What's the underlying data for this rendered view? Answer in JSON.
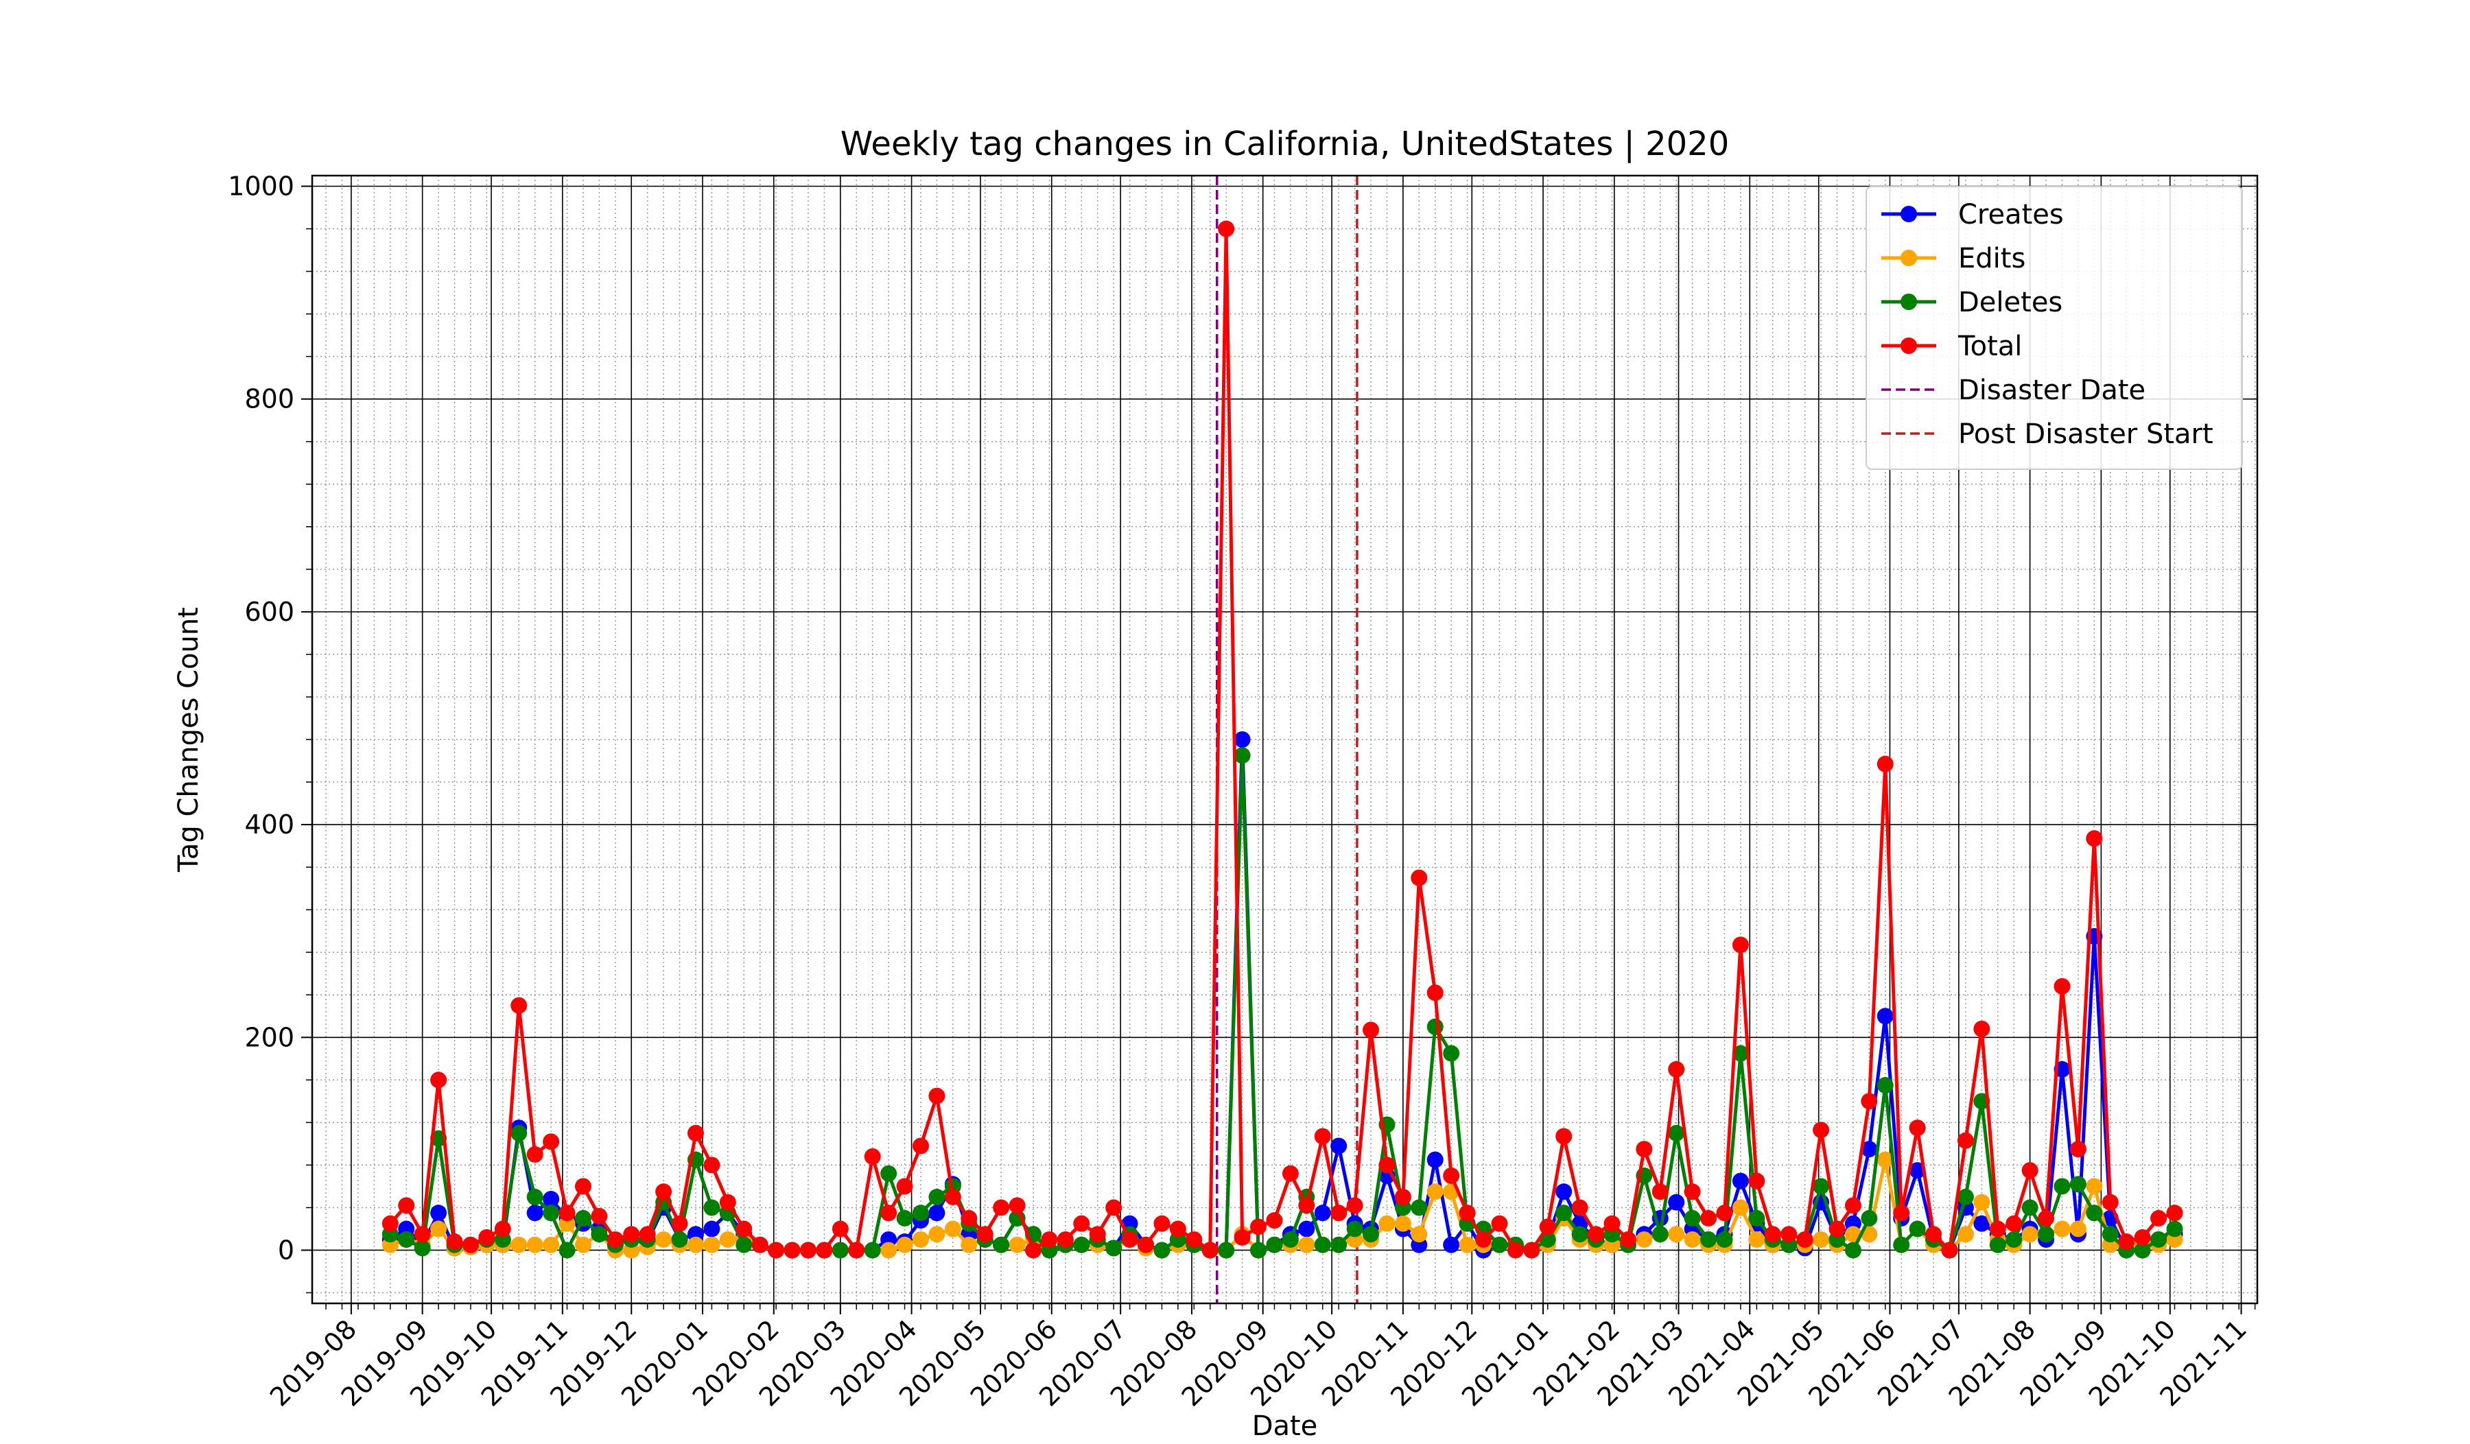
{
  "chart_data": {
    "type": "line",
    "title": "Weekly tag changes in California, UnitedStates | 2020",
    "xlabel": "Date",
    "ylabel": "Tag Changes Count",
    "ylim": [
      -50,
      1010
    ],
    "yticks": [
      0,
      200,
      400,
      600,
      800,
      1000
    ],
    "xlim": [
      "2019-07-15",
      "2021-11-08"
    ],
    "xticks": [
      "2019-08-01",
      "2019-09-01",
      "2019-10-01",
      "2019-11-01",
      "2019-12-01",
      "2020-01-01",
      "2020-02-01",
      "2020-03-01",
      "2020-04-01",
      "2020-05-01",
      "2020-06-01",
      "2020-07-01",
      "2020-08-01",
      "2020-09-01",
      "2020-10-01",
      "2020-11-01",
      "2020-12-01",
      "2021-01-01",
      "2021-02-01",
      "2021-03-01",
      "2021-04-01",
      "2021-05-01",
      "2021-06-01",
      "2021-07-01",
      "2021-08-01",
      "2021-09-01",
      "2021-10-01",
      "2021-11-01"
    ],
    "xtick_labels": [
      "2019-08",
      "2019-09",
      "2019-10",
      "2019-11",
      "2019-12",
      "2020-01",
      "2020-02",
      "2020-03",
      "2020-04",
      "2020-05",
      "2020-06",
      "2020-07",
      "2020-08",
      "2020-09",
      "2020-10",
      "2020-11",
      "2020-12",
      "2021-01",
      "2021-02",
      "2021-03",
      "2021-04",
      "2021-05",
      "2021-06",
      "2021-07",
      "2021-08",
      "2021-09",
      "2021-10",
      "2021-11"
    ],
    "grid": true,
    "minor_grid": true,
    "legend_position": "top-right",
    "x": [
      "2019-08-18",
      "2019-08-25",
      "2019-09-01",
      "2019-09-08",
      "2019-09-15",
      "2019-09-22",
      "2019-09-29",
      "2019-10-06",
      "2019-10-13",
      "2019-10-20",
      "2019-10-27",
      "2019-11-03",
      "2019-11-10",
      "2019-11-17",
      "2019-11-24",
      "2019-12-01",
      "2019-12-08",
      "2019-12-15",
      "2019-12-22",
      "2019-12-29",
      "2020-01-05",
      "2020-01-12",
      "2020-01-19",
      "2020-01-26",
      "2020-02-02",
      "2020-02-09",
      "2020-02-16",
      "2020-02-23",
      "2020-03-01",
      "2020-03-08",
      "2020-03-15",
      "2020-03-22",
      "2020-03-29",
      "2020-04-05",
      "2020-04-12",
      "2020-04-19",
      "2020-04-26",
      "2020-05-03",
      "2020-05-10",
      "2020-05-17",
      "2020-05-24",
      "2020-05-31",
      "2020-06-07",
      "2020-06-14",
      "2020-06-21",
      "2020-06-28",
      "2020-07-05",
      "2020-07-12",
      "2020-07-19",
      "2020-07-26",
      "2020-08-02",
      "2020-08-09",
      "2020-08-16",
      "2020-08-23",
      "2020-08-30",
      "2020-09-06",
      "2020-09-13",
      "2020-09-20",
      "2020-09-27",
      "2020-10-04",
      "2020-10-11",
      "2020-10-18",
      "2020-10-25",
      "2020-11-01",
      "2020-11-08",
      "2020-11-15",
      "2020-11-22",
      "2020-11-29",
      "2020-12-06",
      "2020-12-13",
      "2020-12-20",
      "2020-12-27",
      "2021-01-03",
      "2021-01-10",
      "2021-01-17",
      "2021-01-24",
      "2021-01-31",
      "2021-02-07",
      "2021-02-14",
      "2021-02-21",
      "2021-02-28",
      "2021-03-07",
      "2021-03-14",
      "2021-03-21",
      "2021-03-28",
      "2021-04-04",
      "2021-04-11",
      "2021-04-18",
      "2021-04-25",
      "2021-05-02",
      "2021-05-09",
      "2021-05-16",
      "2021-05-23",
      "2021-05-30",
      "2021-06-06",
      "2021-06-13",
      "2021-06-20",
      "2021-06-27",
      "2021-07-04",
      "2021-07-11",
      "2021-07-18",
      "2021-07-25",
      "2021-08-01",
      "2021-08-08",
      "2021-08-15",
      "2021-08-22",
      "2021-08-29",
      "2021-09-05",
      "2021-09-12",
      "2021-09-19",
      "2021-09-26",
      "2021-10-03"
    ],
    "series": [
      {
        "name": "Creates",
        "color": "#0000ff",
        "values": [
          10,
          20,
          5,
          35,
          2,
          3,
          5,
          5,
          115,
          35,
          48,
          30,
          25,
          20,
          5,
          10,
          8,
          40,
          10,
          15,
          20,
          35,
          15,
          5,
          0,
          0,
          0,
          0,
          0,
          0,
          0,
          10,
          8,
          28,
          35,
          62,
          15,
          10,
          5,
          30,
          15,
          0,
          5,
          5,
          10,
          2,
          25,
          5,
          0,
          10,
          5,
          0,
          0,
          480,
          0,
          5,
          15,
          20,
          35,
          98,
          25,
          20,
          70,
          20,
          5,
          85,
          5,
          25,
          0,
          5,
          5,
          0,
          10,
          55,
          25,
          10,
          5,
          5,
          15,
          30,
          45,
          20,
          10,
          15,
          65,
          25,
          5,
          5,
          2,
          45,
          10,
          25,
          95,
          220,
          30,
          75,
          10,
          0,
          40,
          25,
          15,
          10,
          20,
          10,
          170,
          15,
          295,
          30,
          0,
          0,
          10,
          15
        ]
      },
      {
        "name": "Edits",
        "color": "#ffa500",
        "values": [
          5,
          10,
          5,
          20,
          2,
          3,
          5,
          5,
          5,
          5,
          5,
          25,
          5,
          15,
          0,
          0,
          3,
          10,
          5,
          5,
          5,
          10,
          10,
          5,
          0,
          0,
          0,
          0,
          0,
          0,
          0,
          0,
          5,
          10,
          15,
          20,
          5,
          10,
          5,
          5,
          10,
          0,
          5,
          5,
          5,
          2,
          10,
          2,
          0,
          5,
          5,
          0,
          0,
          15,
          0,
          5,
          5,
          5,
          5,
          5,
          10,
          10,
          25,
          25,
          15,
          55,
          55,
          5,
          5,
          5,
          5,
          0,
          5,
          30,
          10,
          5,
          5,
          10,
          10,
          15,
          15,
          10,
          5,
          5,
          40,
          10,
          5,
          5,
          5,
          10,
          5,
          15,
          15,
          85,
          5,
          20,
          5,
          0,
          15,
          45,
          10,
          5,
          15,
          15,
          20,
          20,
          60,
          5,
          5,
          5,
          5,
          10
        ]
      },
      {
        "name": "Deletes",
        "color": "#008000",
        "values": [
          15,
          10,
          2,
          105,
          5,
          5,
          10,
          10,
          110,
          50,
          35,
          0,
          30,
          15,
          5,
          10,
          10,
          45,
          10,
          85,
          40,
          35,
          5,
          5,
          0,
          0,
          0,
          0,
          0,
          0,
          0,
          72,
          30,
          35,
          50,
          60,
          25,
          10,
          5,
          30,
          15,
          0,
          5,
          5,
          10,
          2,
          15,
          5,
          0,
          10,
          5,
          0,
          0,
          465,
          0,
          5,
          10,
          50,
          5,
          5,
          20,
          15,
          118,
          40,
          40,
          210,
          185,
          25,
          20,
          5,
          5,
          0,
          10,
          35,
          15,
          10,
          15,
          5,
          70,
          15,
          110,
          30,
          10,
          10,
          185,
          30,
          10,
          5,
          10,
          60,
          10,
          0,
          30,
          155,
          5,
          20,
          10,
          0,
          50,
          140,
          5,
          10,
          40,
          15,
          60,
          62,
          35,
          15,
          0,
          0,
          10,
          20
        ]
      },
      {
        "name": "Total",
        "color": "#ff0000",
        "values": [
          25,
          42,
          15,
          160,
          8,
          5,
          12,
          20,
          230,
          90,
          102,
          35,
          60,
          32,
          10,
          15,
          15,
          55,
          25,
          110,
          80,
          45,
          20,
          5,
          0,
          0,
          0,
          0,
          20,
          0,
          88,
          35,
          60,
          98,
          145,
          50,
          30,
          15,
          40,
          42,
          0,
          10,
          10,
          25,
          15,
          40,
          10,
          5,
          25,
          20,
          10,
          0,
          960,
          12,
          22,
          28,
          72,
          42,
          107,
          35,
          42,
          207,
          80,
          50,
          350,
          242,
          70,
          35,
          10,
          25,
          0,
          0,
          22,
          107,
          40,
          15,
          25,
          10,
          95,
          55,
          170,
          55,
          30,
          35,
          287,
          65,
          15,
          15,
          10,
          113,
          20,
          42,
          140,
          457,
          35,
          115,
          15,
          0,
          103,
          208,
          20,
          25,
          75,
          30,
          248,
          95,
          387,
          45,
          8,
          12,
          30,
          35
        ]
      }
    ],
    "vlines": [
      {
        "name": "Disaster Date",
        "x": "2020-08-12",
        "color": "#800080",
        "style": "dashed"
      },
      {
        "name": "Post Disaster Start",
        "x": "2020-10-12",
        "color": "#b22222",
        "style": "dashed"
      }
    ]
  }
}
